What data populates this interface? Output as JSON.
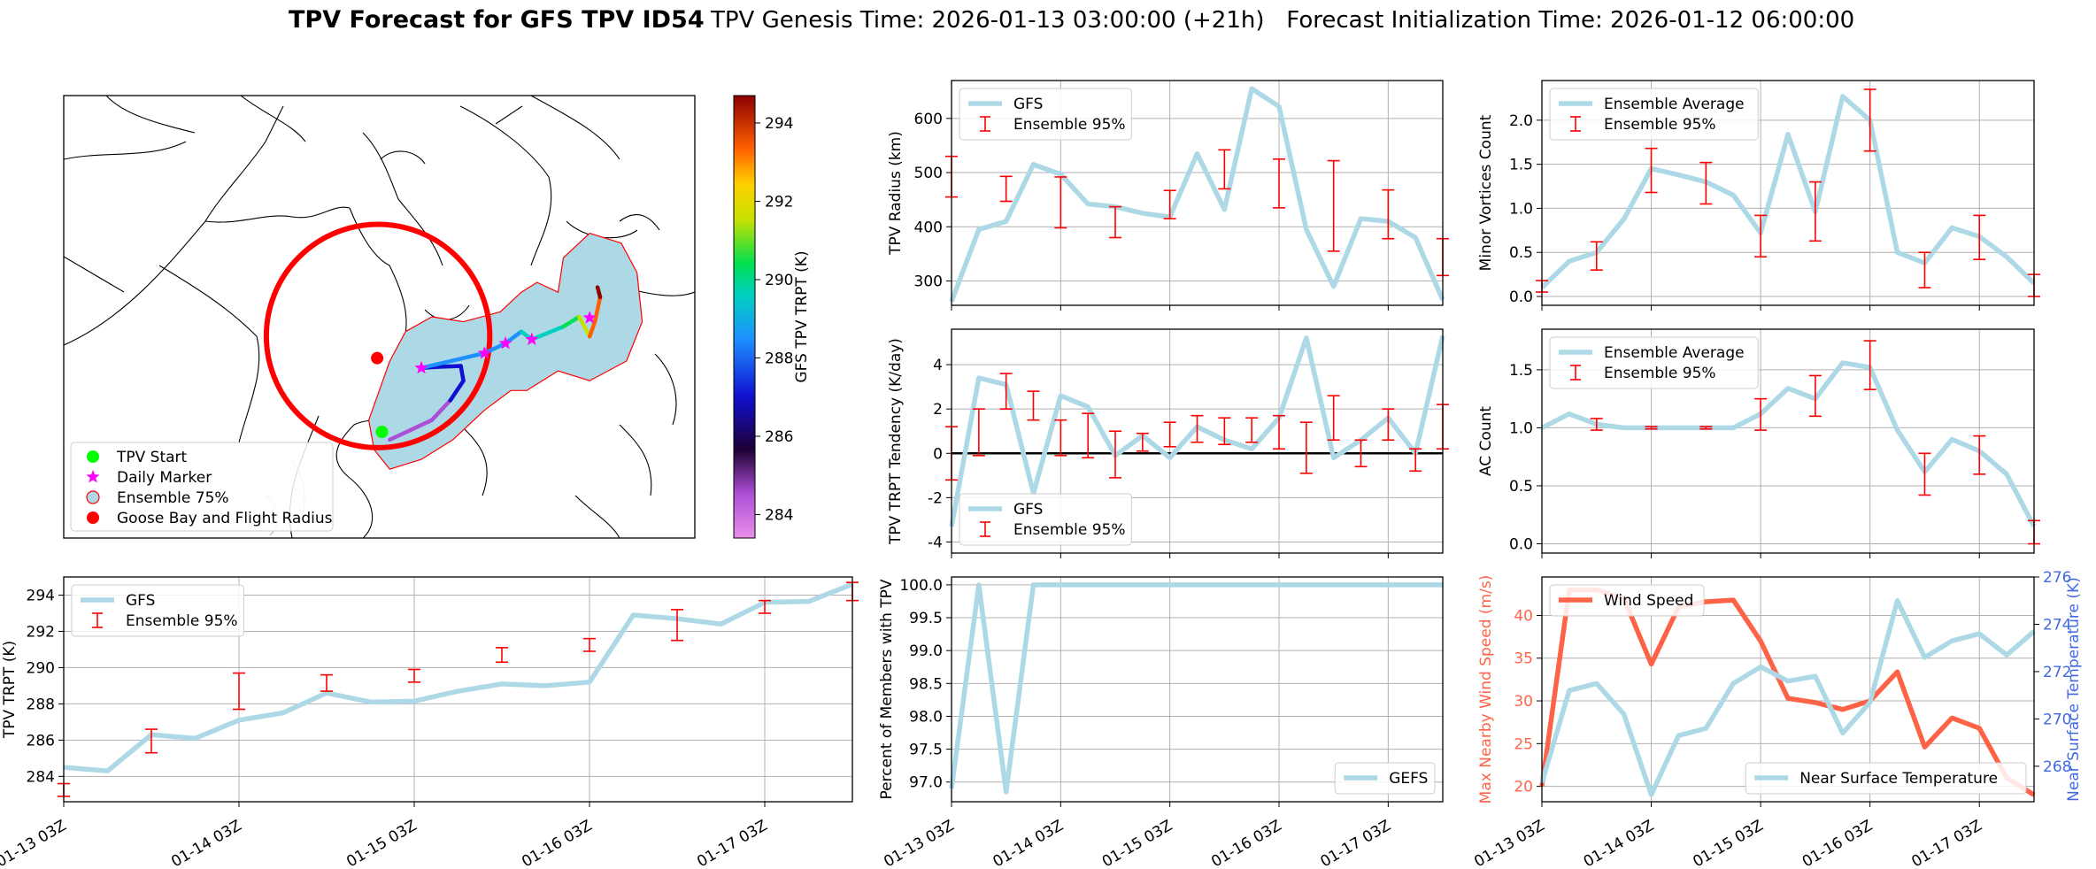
{
  "figure": {
    "title_bold": "TPV Forecast for GFS TPV ID54",
    "title_rest": "TPV Genesis Time: 2026-01-13 03:00:00 (+21h)   Forecast Initialization Time: 2026-01-12 06:00:00"
  },
  "colors": {
    "gfs": "#add8e6",
    "ens": "#ff0000",
    "wind": "#ff6347",
    "temp_axis": "#4169e1",
    "grid": "#b0b0b0",
    "flight": "#ff0000",
    "start": "#00ff00",
    "marker": "#ff00ff",
    "goose": "#ff0000",
    "ens75_fill": "#add8e6",
    "ens75_edge": "#ff0000"
  },
  "chart_data": [
    {
      "id": "map",
      "type": "map",
      "legend": [
        "TPV Start",
        "Daily Marker",
        "Ensemble 75%",
        "Goose Bay and Flight Radius"
      ],
      "colorbar": {
        "label": "GFS TPV TRPT (K)",
        "range": [
          283.4,
          294.7
        ],
        "ticks": [
          284,
          286,
          288,
          290,
          292,
          294
        ]
      },
      "track": [
        {
          "lon": -58.0,
          "lat": 45.0,
          "trpt": 283.6
        },
        {
          "lon": -54.0,
          "lat": 46.0,
          "trpt": 284.2
        },
        {
          "lon": -50.0,
          "lat": 47.0,
          "trpt": 284.4
        },
        {
          "lon": -46.5,
          "lat": 49.0,
          "trpt": 286.0
        },
        {
          "lon": -44.0,
          "lat": 51.0,
          "trpt": 286.3
        },
        {
          "lon": -44.5,
          "lat": 52.5,
          "trpt": 286.8
        },
        {
          "lon": -49.0,
          "lat": 52.4,
          "trpt": 287.0
        },
        {
          "lon": -52.0,
          "lat": 52.3,
          "trpt": 287.2
        },
        {
          "lon": -40.0,
          "lat": 53.8,
          "trpt": 288.1
        },
        {
          "lon": -36.0,
          "lat": 54.8,
          "trpt": 288.4
        },
        {
          "lon": -33.0,
          "lat": 56.0,
          "trpt": 289.0
        },
        {
          "lon": -31.0,
          "lat": 55.2,
          "trpt": 289.6
        },
        {
          "lon": -25.0,
          "lat": 56.5,
          "trpt": 290.0
        },
        {
          "lon": -22.0,
          "lat": 57.5,
          "trpt": 291.3
        },
        {
          "lon": -20.0,
          "lat": 55.5,
          "trpt": 292.7
        },
        {
          "lon": -19.0,
          "lat": 57.0,
          "trpt": 292.9
        },
        {
          "lon": -18.0,
          "lat": 59.5,
          "trpt": 293.5
        },
        {
          "lon": -18.5,
          "lat": 60.5,
          "trpt": 294.5
        }
      ],
      "tpv_start": {
        "lon": -59.5,
        "lat": 45.8
      },
      "goose_bay": {
        "lon": -60.4,
        "lat": 53.3
      },
      "flight_radius_deg": 18,
      "daily_markers": [
        {
          "lon": -52.0,
          "lat": 52.3
        },
        {
          "lon": -40.0,
          "lat": 53.8
        },
        {
          "lon": -36.0,
          "lat": 54.8
        },
        {
          "lon": -31.0,
          "lat": 55.2
        },
        {
          "lon": -20.0,
          "lat": 57.4
        }
      ],
      "ensemble75": [
        {
          "lon": -61.0,
          "lat": 44.0
        },
        {
          "lon": -58.0,
          "lat": 42.0
        },
        {
          "lon": -52.0,
          "lat": 43.0
        },
        {
          "lon": -46.0,
          "lat": 45.0
        },
        {
          "lon": -40.0,
          "lat": 48.0
        },
        {
          "lon": -35.0,
          "lat": 50.0
        },
        {
          "lon": -32.0,
          "lat": 50.0
        },
        {
          "lon": -26.0,
          "lat": 52.0
        },
        {
          "lon": -20.0,
          "lat": 51.0
        },
        {
          "lon": -13.0,
          "lat": 53.0
        },
        {
          "lon": -10.0,
          "lat": 57.0
        },
        {
          "lon": -11.0,
          "lat": 62.0
        },
        {
          "lon": -14.0,
          "lat": 65.0
        },
        {
          "lon": -20.0,
          "lat": 66.0
        },
        {
          "lon": -25.0,
          "lat": 63.5
        },
        {
          "lon": -26.0,
          "lat": 60.0
        },
        {
          "lon": -30.0,
          "lat": 61.0
        },
        {
          "lon": -33.0,
          "lat": 60.0
        },
        {
          "lon": -37.0,
          "lat": 58.0
        },
        {
          "lon": -44.0,
          "lat": 57.0
        },
        {
          "lon": -50.0,
          "lat": 57.5
        },
        {
          "lon": -55.0,
          "lat": 56.0
        },
        {
          "lon": -58.0,
          "lat": 53.0
        },
        {
          "lon": -60.0,
          "lat": 50.0
        },
        {
          "lon": -62.0,
          "lat": 47.0
        }
      ]
    },
    {
      "id": "radius",
      "type": "line",
      "ylabel": "TPV Radius (km)",
      "ylim": [
        255,
        670
      ],
      "yticks": [
        300,
        400,
        500,
        600
      ],
      "legend_pos": "upper-left",
      "legend": [
        "GFS",
        "Ensemble 95%"
      ],
      "series": [
        {
          "name": "GFS",
          "values": [
            262,
            395,
            410,
            515,
            497,
            442,
            437,
            425,
            418,
            535,
            432,
            655,
            622,
            395,
            290,
            415,
            410,
            380,
            265
          ]
        }
      ],
      "errors": [
        {
          "i": 0,
          "lo": 455,
          "hi": 530
        },
        {
          "i": 2,
          "lo": 447,
          "hi": 493
        },
        {
          "i": 4,
          "lo": 398,
          "hi": 492
        },
        {
          "i": 6,
          "lo": 380,
          "hi": 437
        },
        {
          "i": 8,
          "lo": 415,
          "hi": 467
        },
        {
          "i": 10,
          "lo": 470,
          "hi": 542
        },
        {
          "i": 12,
          "lo": 435,
          "hi": 525
        },
        {
          "i": 14,
          "lo": 355,
          "hi": 522
        },
        {
          "i": 16,
          "lo": 378,
          "hi": 468
        },
        {
          "i": 18,
          "lo": 310,
          "hi": 378
        }
      ]
    },
    {
      "id": "minor",
      "type": "line",
      "ylabel": "Minor Vortices Count",
      "ylim": [
        -0.1,
        2.45
      ],
      "yticks": [
        0.0,
        0.5,
        1.0,
        1.5,
        2.0
      ],
      "legend_pos": "upper-left",
      "legend": [
        "Ensemble Average",
        "Ensemble 95%"
      ],
      "series": [
        {
          "name": "Ensemble Average",
          "values": [
            0.1,
            0.4,
            0.5,
            0.88,
            1.45,
            1.38,
            1.3,
            1.15,
            0.72,
            1.84,
            0.96,
            2.27,
            2.0,
            0.5,
            0.38,
            0.78,
            0.68,
            0.45,
            0.15
          ]
        }
      ],
      "errors": [
        {
          "i": 0,
          "lo": 0.05,
          "hi": 0.18
        },
        {
          "i": 2,
          "lo": 0.3,
          "hi": 0.62
        },
        {
          "i": 4,
          "lo": 1.18,
          "hi": 1.68
        },
        {
          "i": 6,
          "lo": 1.05,
          "hi": 1.52
        },
        {
          "i": 8,
          "lo": 0.45,
          "hi": 0.92
        },
        {
          "i": 10,
          "lo": 0.63,
          "hi": 1.3
        },
        {
          "i": 12,
          "lo": 1.65,
          "hi": 2.35
        },
        {
          "i": 14,
          "lo": 0.1,
          "hi": 0.5
        },
        {
          "i": 16,
          "lo": 0.42,
          "hi": 0.92
        },
        {
          "i": 18,
          "lo": 0.0,
          "hi": 0.25
        }
      ]
    },
    {
      "id": "tendency",
      "type": "line",
      "ylabel": "TPV TRPT Tendency (K/day)",
      "ylim": [
        -4.5,
        5.6
      ],
      "yticks": [
        -4,
        -2,
        0,
        2,
        4
      ],
      "legend_pos": "lower-left",
      "legend": [
        "GFS",
        "Ensemble 95%"
      ],
      "zero_line": true,
      "series": [
        {
          "name": "GFS",
          "values": [
            -3.3,
            3.4,
            3.1,
            -1.8,
            2.6,
            2.1,
            -0.1,
            0.8,
            -0.2,
            1.2,
            0.6,
            0.2,
            1.6,
            5.2,
            -0.2,
            0.6,
            1.6,
            0.0,
            5.3
          ]
        }
      ],
      "errors": [
        {
          "i": 0,
          "lo": -1.2,
          "hi": 1.2
        },
        {
          "i": 1,
          "lo": -0.1,
          "hi": 2.0
        },
        {
          "i": 2,
          "lo": 2.0,
          "hi": 3.6
        },
        {
          "i": 3,
          "lo": 1.5,
          "hi": 2.8
        },
        {
          "i": 4,
          "lo": -0.1,
          "hi": 1.5
        },
        {
          "i": 5,
          "lo": -0.2,
          "hi": 1.8
        },
        {
          "i": 6,
          "lo": -1.1,
          "hi": 1.0
        },
        {
          "i": 7,
          "lo": 0.1,
          "hi": 0.9
        },
        {
          "i": 8,
          "lo": 0.3,
          "hi": 1.4
        },
        {
          "i": 9,
          "lo": 0.5,
          "hi": 1.7
        },
        {
          "i": 10,
          "lo": 0.4,
          "hi": 1.6
        },
        {
          "i": 11,
          "lo": 0.5,
          "hi": 1.6
        },
        {
          "i": 12,
          "lo": 0.2,
          "hi": 1.7
        },
        {
          "i": 13,
          "lo": -0.9,
          "hi": 1.4
        },
        {
          "i": 14,
          "lo": 0.6,
          "hi": 2.6
        },
        {
          "i": 15,
          "lo": -0.6,
          "hi": 0.6
        },
        {
          "i": 16,
          "lo": 0.6,
          "hi": 2.0
        },
        {
          "i": 17,
          "lo": -0.8,
          "hi": 0.2
        },
        {
          "i": 18,
          "lo": 0.2,
          "hi": 2.2
        }
      ]
    },
    {
      "id": "ac",
      "type": "line",
      "ylabel": "AC Count",
      "ylim": [
        -0.08,
        1.85
      ],
      "yticks": [
        0.0,
        0.5,
        1.0,
        1.5
      ],
      "legend_pos": "upper-left",
      "legend": [
        "Ensemble Average",
        "Ensemble 95%"
      ],
      "series": [
        {
          "name": "Ensemble Average",
          "values": [
            1.0,
            1.12,
            1.03,
            1.0,
            1.0,
            1.0,
            1.0,
            1.0,
            1.12,
            1.34,
            1.25,
            1.56,
            1.52,
            0.98,
            0.62,
            0.9,
            0.8,
            0.6,
            0.15
          ]
        }
      ],
      "errors": [
        {
          "i": 2,
          "lo": 0.98,
          "hi": 1.08
        },
        {
          "i": 4,
          "lo": 0.99,
          "hi": 1.01
        },
        {
          "i": 6,
          "lo": 0.99,
          "hi": 1.01
        },
        {
          "i": 8,
          "lo": 0.98,
          "hi": 1.25
        },
        {
          "i": 10,
          "lo": 1.1,
          "hi": 1.45
        },
        {
          "i": 12,
          "lo": 1.33,
          "hi": 1.75
        },
        {
          "i": 14,
          "lo": 0.42,
          "hi": 0.78
        },
        {
          "i": 16,
          "lo": 0.6,
          "hi": 0.93
        },
        {
          "i": 18,
          "lo": 0.0,
          "hi": 0.2
        }
      ]
    },
    {
      "id": "trpt",
      "type": "line",
      "ylabel": "TPV TRPT (K)",
      "ylim": [
        282.6,
        295.0
      ],
      "yticks": [
        284,
        286,
        288,
        290,
        292,
        294
      ],
      "legend_pos": "upper-left",
      "legend": [
        "GFS",
        "Ensemble 95%"
      ],
      "x_ticks": [
        "01-13 03Z",
        "01-14 03Z",
        "01-15 03Z",
        "01-16 03Z",
        "01-17 03Z"
      ],
      "x_tick_idx": [
        0,
        4,
        8,
        12,
        16
      ],
      "series": [
        {
          "name": "GFS",
          "values": [
            284.5,
            284.3,
            286.3,
            286.1,
            287.1,
            287.5,
            288.6,
            288.1,
            288.15,
            288.7,
            289.1,
            289.0,
            289.2,
            292.9,
            292.7,
            292.4,
            293.6,
            293.65,
            294.6
          ]
        }
      ],
      "errors": [
        {
          "i": 0,
          "lo": 282.9,
          "hi": 283.6
        },
        {
          "i": 2,
          "lo": 285.3,
          "hi": 286.6
        },
        {
          "i": 4,
          "lo": 287.7,
          "hi": 289.7
        },
        {
          "i": 6,
          "lo": 288.7,
          "hi": 289.6
        },
        {
          "i": 8,
          "lo": 289.2,
          "hi": 289.9
        },
        {
          "i": 10,
          "lo": 290.3,
          "hi": 291.1
        },
        {
          "i": 12,
          "lo": 290.9,
          "hi": 291.6
        },
        {
          "i": 14,
          "lo": 291.5,
          "hi": 293.2
        },
        {
          "i": 16,
          "lo": 293.0,
          "hi": 293.7
        },
        {
          "i": 18,
          "lo": 293.7,
          "hi": 294.7
        }
      ]
    },
    {
      "id": "percent",
      "type": "line",
      "ylabel": "Percent of Members with TPV",
      "ylim": [
        96.7,
        100.12
      ],
      "yticks": [
        97.0,
        97.5,
        98.0,
        98.5,
        99.0,
        99.5,
        100.0
      ],
      "legend_pos": "lower-right",
      "legend": [
        "GEFS"
      ],
      "x_ticks": [
        "01-13 03Z",
        "01-14 03Z",
        "01-15 03Z",
        "01-16 03Z",
        "01-17 03Z"
      ],
      "x_tick_idx": [
        0,
        4,
        8,
        12,
        16
      ],
      "series": [
        {
          "name": "GEFS",
          "values": [
            96.9,
            100.0,
            96.85,
            100.0,
            100.0,
            100.0,
            100.0,
            100.0,
            100.0,
            100.0,
            100.0,
            100.0,
            100.0,
            100.0,
            100.0,
            100.0,
            100.0,
            100.0,
            100.0
          ]
        }
      ]
    },
    {
      "id": "wind",
      "type": "line",
      "ylabel": "Max Nearby Wind Speed (m/s)",
      "ylabel2": "Near Surface Temperature (K)",
      "ylim": [
        18.2,
        44.5
      ],
      "yticks": [
        20,
        25,
        30,
        35,
        40
      ],
      "ylim2": [
        266.5,
        276.0
      ],
      "yticks2": [
        268,
        270,
        272,
        274,
        276
      ],
      "legend": [
        "Wind Speed"
      ],
      "legend2": [
        "Near Surface Temperature"
      ],
      "x_ticks": [
        "01-13 03Z",
        "01-14 03Z",
        "01-15 03Z",
        "01-16 03Z",
        "01-17 03Z"
      ],
      "x_tick_idx": [
        0,
        4,
        8,
        12,
        16
      ],
      "wind": [
        20,
        43,
        43,
        42,
        34.3,
        41,
        41.6,
        41.8,
        37,
        30.3,
        29.8,
        29,
        30,
        33.4,
        24.6,
        28,
        26.8,
        21,
        19
      ],
      "temp": [
        267.3,
        271.2,
        271.5,
        270.2,
        266.8,
        269.3,
        269.6,
        271.5,
        272.2,
        271.6,
        271.8,
        269.4,
        270.7,
        275.0,
        272.6,
        273.3,
        273.6,
        272.7,
        273.7
      ]
    }
  ]
}
